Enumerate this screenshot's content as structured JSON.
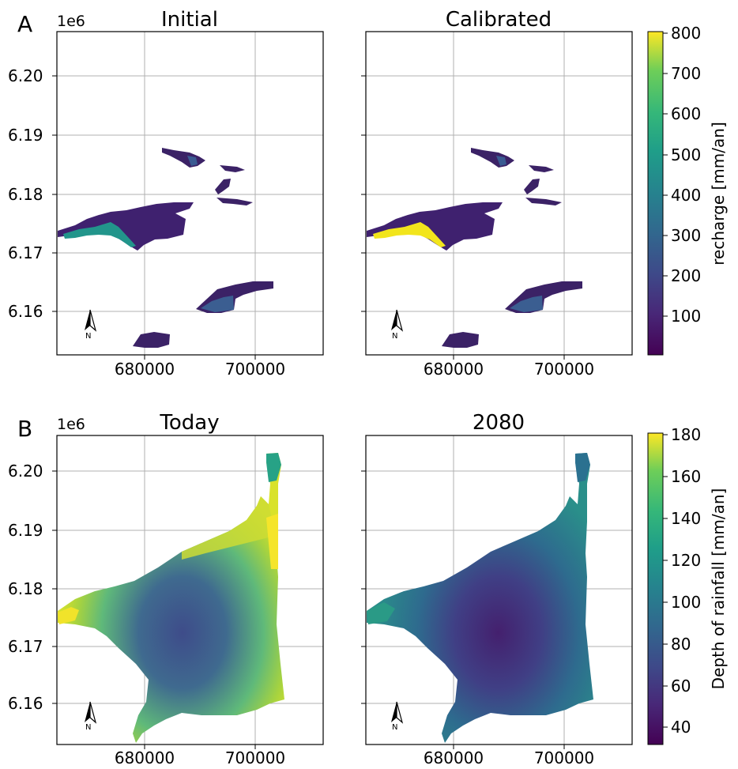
{
  "panels": {
    "A": {
      "letter": "A",
      "offset_label": "1e6",
      "left_title": "Initial",
      "right_title": "Calibrated"
    },
    "B": {
      "letter": "B",
      "offset_label": "1e6",
      "left_title": "Today",
      "right_title": "2080"
    }
  },
  "axes": {
    "x_ticks": [
      "680000",
      "700000"
    ],
    "y_ticks": [
      "6.20",
      "6.19",
      "6.18",
      "6.17",
      "6.16"
    ]
  },
  "north_arrow": {
    "label": "N"
  },
  "colorbars": {
    "A": {
      "label": "recharge [mm/an]",
      "ticks": [
        "800",
        "700",
        "600",
        "500",
        "400",
        "300",
        "200",
        "100"
      ],
      "colormap": "viridis"
    },
    "B": {
      "label": "Depth of rainfall [mm/an]",
      "ticks": [
        "180",
        "160",
        "140",
        "120",
        "100",
        "80",
        "60",
        "40"
      ],
      "colormap": "viridis"
    }
  },
  "colors": {
    "viridis_dark": "#3b1c64",
    "viridis_blue": "#3b5e91",
    "viridis_teal": "#1f9e89",
    "viridis_yellow": "#f2e51c",
    "grid": "#b0b0b0"
  }
}
